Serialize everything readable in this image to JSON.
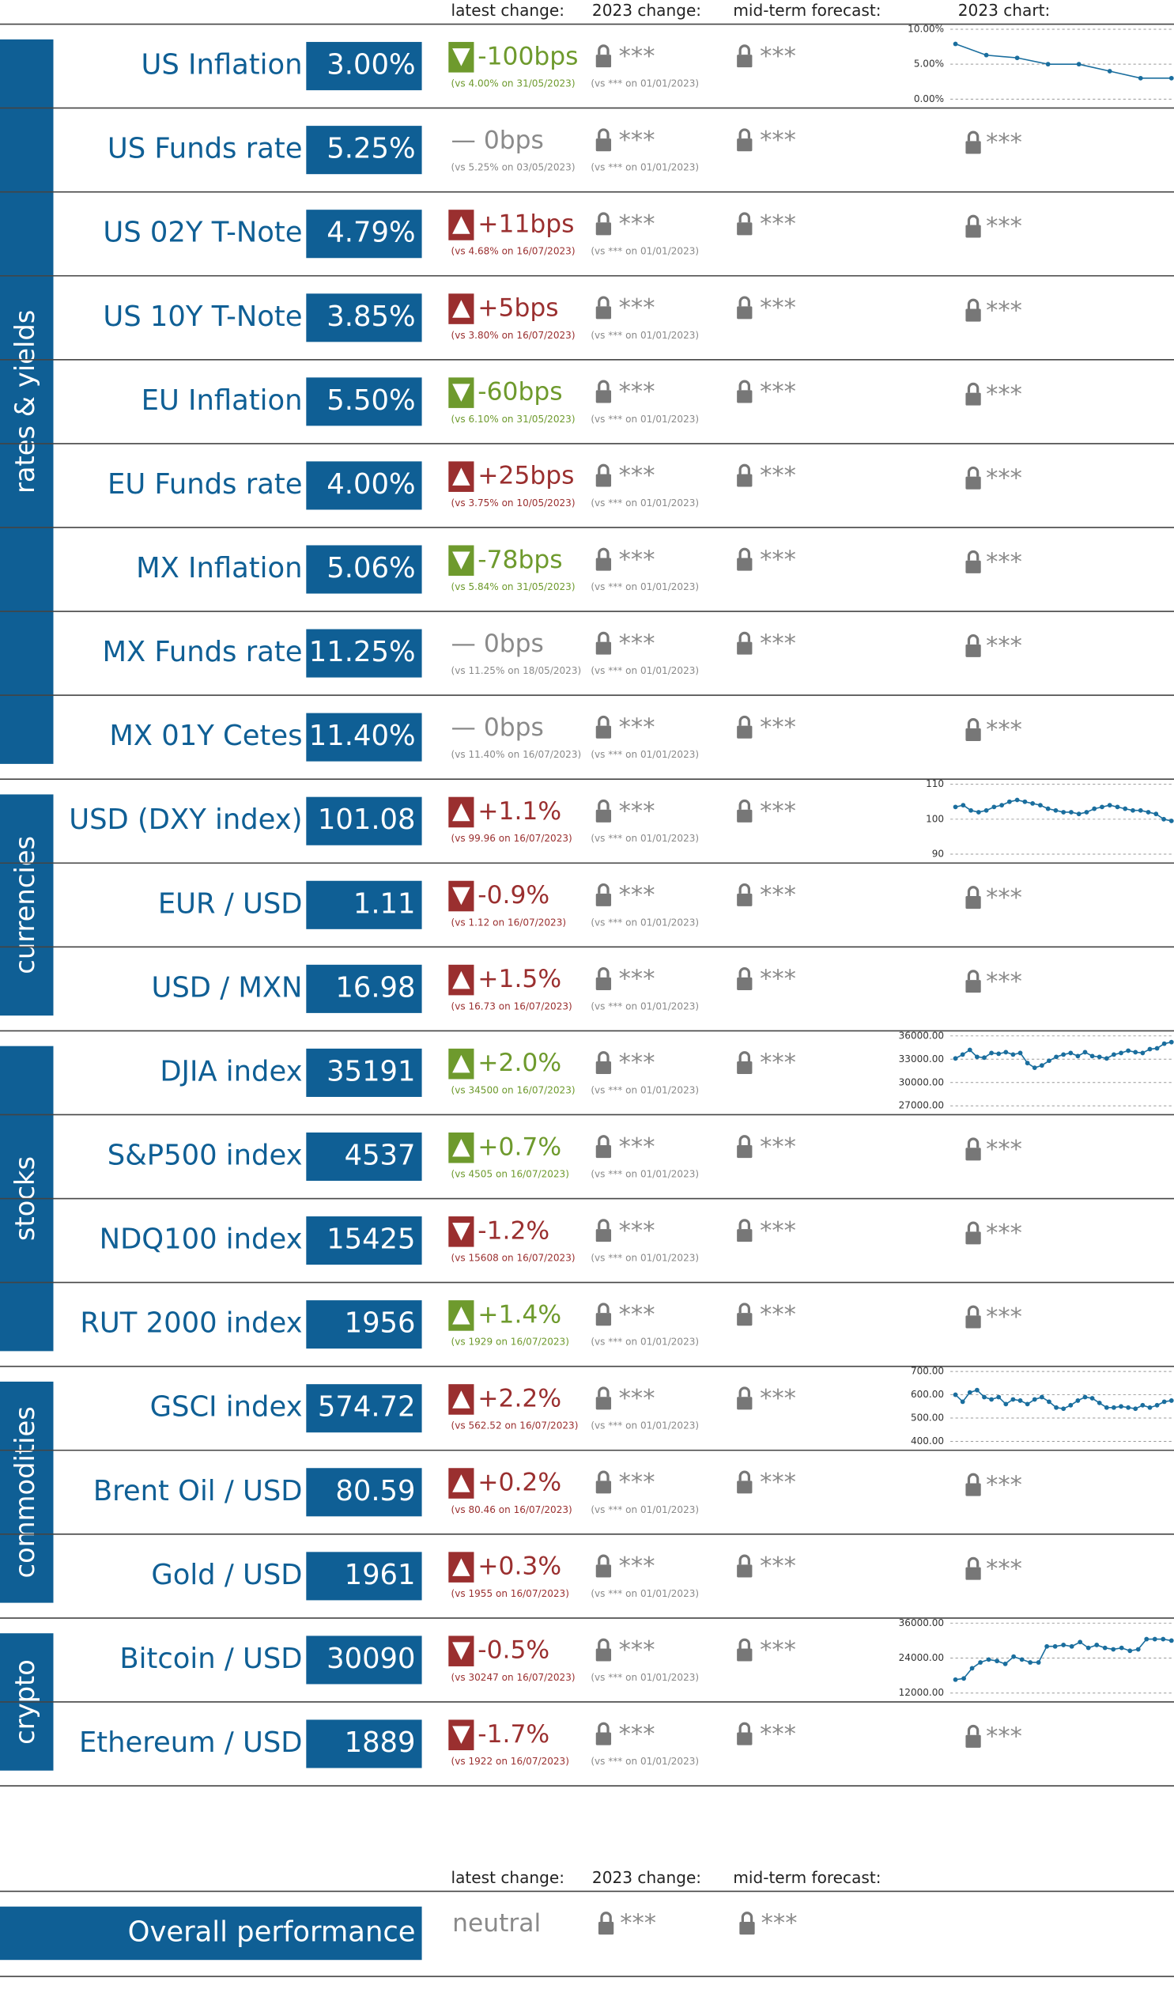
{
  "headers": {
    "latest": "latest change:",
    "ytd": "2023 change:",
    "forecast": "mid-term forecast:",
    "chart": "2023 chart:"
  },
  "groups": [
    {
      "name": "rates & yields",
      "rows": [
        {
          "name": "US Inflation",
          "value": "3.00%",
          "change": "-100bps",
          "arrow": "down",
          "tone": "positive",
          "note": "(vs 4.00% on 31/05/2023)",
          "ytd": "***",
          "ytd_note": "(vs *** on 01/01/2023)",
          "forecast": "***",
          "chart": {
            "type": "line",
            "ylim": [
              0,
              10
            ],
            "yticks": [
              {
                "value": 10,
                "label": "10.00%"
              },
              {
                "value": 5,
                "label": "5.00%"
              },
              {
                "value": 0,
                "label": "0.00%"
              }
            ],
            "values": [
              7.9,
              6.3,
              5.9,
              5.0,
              5.0,
              4.0,
              3.0,
              3.0
            ]
          }
        },
        {
          "name": "US Funds rate",
          "value": "5.25%",
          "change": "— 0bps",
          "tone": "neutral",
          "note": "(vs 5.25% on 03/05/2023)",
          "ytd": "***",
          "ytd_note": "(vs *** on 01/01/2023)",
          "forecast": "***",
          "chart_text": "***"
        },
        {
          "name": "US 02Y T-Note",
          "value": "4.79%",
          "change": "+11bps",
          "arrow": "up",
          "tone": "negative",
          "note": "(vs 4.68% on 16/07/2023)",
          "ytd": "***",
          "ytd_note": "(vs *** on 01/01/2023)",
          "forecast": "***",
          "chart_text": "***"
        },
        {
          "name": "US 10Y T-Note",
          "value": "3.85%",
          "change": "+5bps",
          "arrow": "up",
          "tone": "negative",
          "note": "(vs 3.80% on 16/07/2023)",
          "ytd": "***",
          "ytd_note": "(vs *** on 01/01/2023)",
          "forecast": "***",
          "chart_text": "***"
        },
        {
          "name": "EU Inflation",
          "value": "5.50%",
          "change": "-60bps",
          "arrow": "down",
          "tone": "positive",
          "note": "(vs 6.10% on 31/05/2023)",
          "ytd": "***",
          "ytd_note": "(vs *** on 01/01/2023)",
          "forecast": "***",
          "chart_text": "***"
        },
        {
          "name": "EU Funds rate",
          "value": "4.00%",
          "change": "+25bps",
          "arrow": "up",
          "tone": "negative",
          "note": "(vs 3.75% on 10/05/2023)",
          "ytd": "***",
          "ytd_note": "(vs *** on 01/01/2023)",
          "forecast": "***",
          "chart_text": "***"
        },
        {
          "name": "MX Inflation",
          "value": "5.06%",
          "change": "-78bps",
          "arrow": "down",
          "tone": "positive",
          "note": "(vs 5.84% on 31/05/2023)",
          "ytd": "***",
          "ytd_note": "(vs *** on 01/01/2023)",
          "forecast": "***",
          "chart_text": "***"
        },
        {
          "name": "MX Funds rate",
          "value": "11.25%",
          "change": "— 0bps",
          "tone": "neutral",
          "note": "(vs 11.25% on 18/05/2023)",
          "ytd": "***",
          "ytd_note": "(vs *** on 01/01/2023)",
          "forecast": "***",
          "chart_text": "***"
        },
        {
          "name": "MX 01Y Cetes",
          "value": "11.40%",
          "change": "— 0bps",
          "tone": "neutral",
          "note": "(vs 11.40% on 16/07/2023)",
          "ytd": "***",
          "ytd_note": "(vs *** on 01/01/2023)",
          "forecast": "***",
          "chart_text": "***"
        }
      ]
    },
    {
      "name": "currencies",
      "rows": [
        {
          "name": "USD (DXY index)",
          "value": "101.08",
          "change": "+1.1%",
          "arrow": "up",
          "tone": "negative",
          "note": "(vs 99.96 on 16/07/2023)",
          "ytd": "***",
          "ytd_note": "(vs *** on 01/01/2023)",
          "forecast": "***",
          "chart": {
            "type": "line",
            "ylim": [
              90,
              110
            ],
            "yticks": [
              110,
              100,
              90
            ],
            "values": [
              103.5,
              104,
              102.5,
              102,
              102.5,
              103.5,
              104,
              105,
              105.5,
              105,
              104.5,
              104,
              103,
              102.5,
              102,
              102,
              101.5,
              102,
              103,
              103.5,
              104,
              103.5,
              103,
              102.5,
              102.5,
              102,
              101.5,
              100,
              99.5
            ]
          }
        },
        {
          "name": "EUR / USD",
          "value": "1.11",
          "change": "-0.9%",
          "arrow": "down",
          "tone": "negative",
          "note": "(vs 1.12 on 16/07/2023)",
          "ytd": "***",
          "ytd_note": "(vs *** on 01/01/2023)",
          "forecast": "***",
          "chart_text": "***"
        },
        {
          "name": "USD / MXN",
          "value": "16.98",
          "change": "+1.5%",
          "arrow": "up",
          "tone": "negative",
          "note": "(vs 16.73 on 16/07/2023)",
          "ytd": "***",
          "ytd_note": "(vs *** on 01/01/2023)",
          "forecast": "***",
          "chart_text": "***"
        }
      ]
    },
    {
      "name": "stocks",
      "rows": [
        {
          "name": "DJIA index",
          "value": "35191",
          "change": "+2.0%",
          "arrow": "up",
          "tone": "positive",
          "note": "(vs 34500 on 16/07/2023)",
          "ytd": "***",
          "ytd_note": "(vs *** on 01/01/2023)",
          "forecast": "***",
          "chart": {
            "type": "line",
            "ylim": [
              27000,
              36000
            ],
            "yticks": [
              {
                "value": 36000,
                "label": "36000.00"
              },
              {
                "value": 33000,
                "label": "33000.00"
              },
              {
                "value": 30000,
                "label": "30000.00"
              },
              {
                "value": 27000,
                "label": "27000.00"
              }
            ],
            "values": [
              33100,
              33600,
              34200,
              33300,
              33200,
              33800,
              33700,
              33900,
              33600,
              33800,
              32500,
              31900,
              32200,
              32800,
              33300,
              33600,
              33800,
              33400,
              33900,
              33400,
              33300,
              33100,
              33600,
              33800,
              34100,
              33900,
              33800,
              34300,
              34400,
              35000,
              35200
            ]
          }
        },
        {
          "name": "S&P500 index",
          "value": "4537",
          "change": "+0.7%",
          "arrow": "up",
          "tone": "positive",
          "note": "(vs 4505 on 16/07/2023)",
          "ytd": "***",
          "ytd_note": "(vs *** on 01/01/2023)",
          "forecast": "***",
          "chart_text": "***"
        },
        {
          "name": "NDQ100 index",
          "value": "15425",
          "change": "-1.2%",
          "arrow": "down",
          "tone": "negative",
          "note": "(vs 15608 on 16/07/2023)",
          "ytd": "***",
          "ytd_note": "(vs *** on 01/01/2023)",
          "forecast": "***",
          "chart_text": "***"
        },
        {
          "name": "RUT 2000 index",
          "value": "1956",
          "change": "+1.4%",
          "arrow": "up",
          "tone": "positive",
          "note": "(vs 1929 on 16/07/2023)",
          "ytd": "***",
          "ytd_note": "(vs *** on 01/01/2023)",
          "forecast": "***",
          "chart_text": "***"
        }
      ]
    },
    {
      "name": "commodities",
      "rows": [
        {
          "name": "GSCI index",
          "value": "574.72",
          "change": "+2.2%",
          "arrow": "up",
          "tone": "negative",
          "note": "(vs 562.52 on 16/07/2023)",
          "ytd": "***",
          "ytd_note": "(vs *** on 01/01/2023)",
          "forecast": "***",
          "chart": {
            "type": "line",
            "ylim": [
              400,
              700
            ],
            "yticks": [
              {
                "value": 700,
                "label": "700.00"
              },
              {
                "value": 600,
                "label": "600.00"
              },
              {
                "value": 500,
                "label": "500.00"
              },
              {
                "value": 400,
                "label": "400.00"
              }
            ],
            "values": [
              600,
              570,
              610,
              620,
              590,
              580,
              590,
              560,
              580,
              575,
              560,
              580,
              590,
              570,
              545,
              540,
              555,
              575,
              590,
              585,
              565,
              545,
              545,
              550,
              545,
              540,
              555,
              545,
              555,
              570,
              575
            ]
          }
        },
        {
          "name": "Brent Oil / USD",
          "value": "80.59",
          "change": "+0.2%",
          "arrow": "up",
          "tone": "negative",
          "note": "(vs 80.46 on 16/07/2023)",
          "ytd": "***",
          "ytd_note": "(vs *** on 01/01/2023)",
          "forecast": "***",
          "chart_text": "***"
        },
        {
          "name": "Gold / USD",
          "value": "1961",
          "change": "+0.3%",
          "arrow": "up",
          "tone": "negative",
          "note": "(vs 1955 on 16/07/2023)",
          "ytd": "***",
          "ytd_note": "(vs *** on 01/01/2023)",
          "forecast": "***",
          "chart_text": "***"
        }
      ]
    },
    {
      "name": "crypto",
      "rows": [
        {
          "name": "Bitcoin / USD",
          "value": "30090",
          "change": "-0.5%",
          "arrow": "down",
          "tone": "negative",
          "note": "(vs 30247 on 16/07/2023)",
          "ytd": "***",
          "ytd_note": "(vs *** on 01/01/2023)",
          "forecast": "***",
          "chart": {
            "type": "line",
            "ylim": [
              12000,
              36000
            ],
            "yticks": [
              {
                "value": 36000,
                "label": "36000.00"
              },
              {
                "value": 24000,
                "label": "24000.00"
              },
              {
                "value": 12000,
                "label": "12000.00"
              }
            ],
            "values": [
              16600,
              17000,
              20500,
              22500,
              23500,
              23000,
              22000,
              24500,
              23500,
              22500,
              22500,
              28000,
              28000,
              28500,
              28000,
              29500,
              27500,
              28500,
              27500,
              27000,
              27500,
              26500,
              27000,
              30500,
              30500,
              30500,
              30000
            ]
          }
        },
        {
          "name": "Ethereum / USD",
          "value": "1889",
          "change": "-1.7%",
          "arrow": "down",
          "tone": "negative",
          "note": "(vs 1922 on 16/07/2023)",
          "ytd": "***",
          "ytd_note": "(vs *** on 01/01/2023)",
          "forecast": "***",
          "chart_text": "***"
        }
      ]
    }
  ],
  "overall": {
    "name": "Overall performance",
    "change": "neutral",
    "ytd": "***",
    "forecast": "***"
  }
}
